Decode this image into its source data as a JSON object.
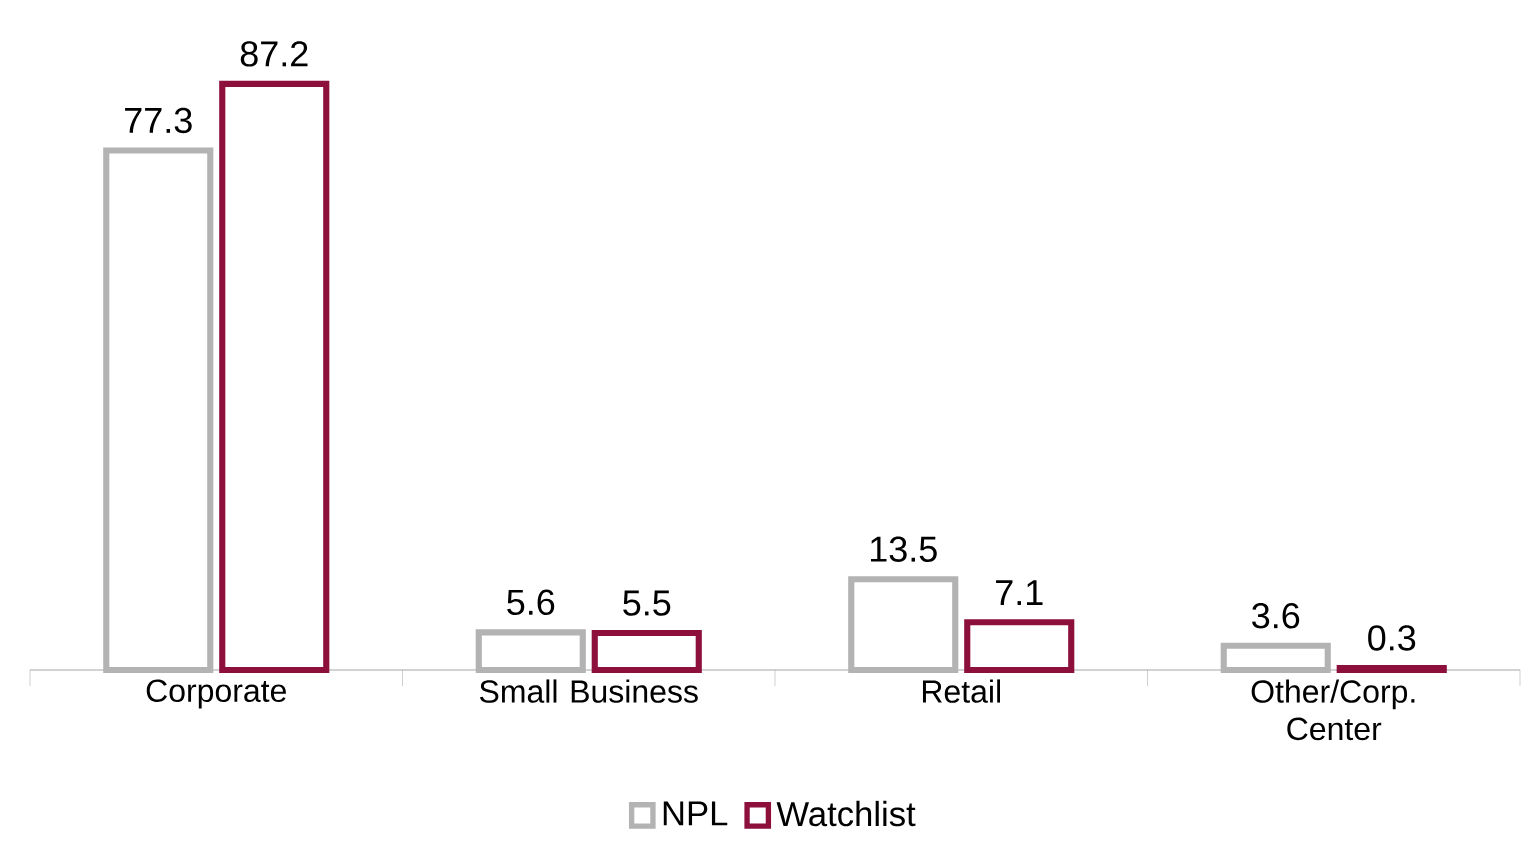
{
  "chart_data": {
    "type": "bar",
    "categories": [
      "Corporate",
      "Small Business",
      "Retail",
      "Other/Corp. Center"
    ],
    "series": [
      {
        "name": "NPL",
        "color": "#b3b3b3",
        "values": [
          77.3,
          5.6,
          13.5,
          3.6
        ]
      },
      {
        "name": "Watchlist",
        "color": "#8c0f3c",
        "values": [
          87.2,
          5.5,
          7.1,
          0.3
        ]
      }
    ],
    "data_labels": true,
    "legend": "bottom"
  }
}
